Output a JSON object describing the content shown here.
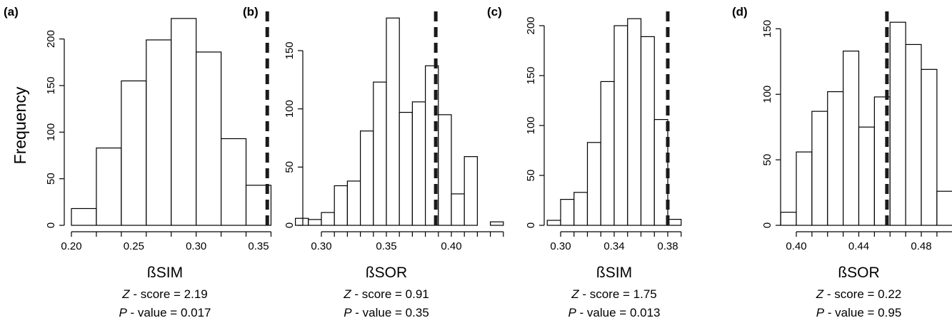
{
  "ylabel": "Frequency",
  "chart_data": [
    {
      "type": "bar",
      "panel_label": "(a)",
      "xlabel": "ßSIM",
      "ylabel": "Frequency",
      "xlim": [
        0.2,
        0.36
      ],
      "ylim": [
        0,
        225
      ],
      "x_ticks": [
        0.2,
        0.25,
        0.3,
        0.35
      ],
      "x_tick_labels": [
        "0.20",
        "0.25",
        "0.30",
        "0.35"
      ],
      "y_ticks": [
        0,
        50,
        100,
        150,
        200
      ],
      "y_tick_labels": [
        "0",
        "50",
        "100",
        "150",
        "200"
      ],
      "bin_width": 0.02,
      "bin_starts": [
        0.2,
        0.22,
        0.24,
        0.26,
        0.28,
        0.3,
        0.32,
        0.34
      ],
      "values": [
        18,
        83,
        155,
        199,
        222,
        186,
        93,
        43
      ],
      "observed_value": 0.357,
      "observed_line_style": "dashed",
      "z_label": "Z",
      "z_rest": " - score = 2.19",
      "p_label": "P",
      "p_rest": " - value = 0.017"
    },
    {
      "type": "bar",
      "panel_label": "(b)",
      "xlabel": "ßSOR",
      "ylabel": "",
      "xlim": [
        0.28,
        0.44
      ],
      "ylim": [
        0,
        180
      ],
      "x_ticks": [
        0.3,
        0.35,
        0.4
      ],
      "x_tick_labels": [
        "0.30",
        "0.35",
        "0.40"
      ],
      "y_ticks": [
        0,
        50,
        100,
        150
      ],
      "y_tick_labels": [
        "0",
        "50",
        "100",
        "150"
      ],
      "bin_width": 0.01,
      "bin_starts": [
        0.28,
        0.29,
        0.3,
        0.31,
        0.32,
        0.33,
        0.34,
        0.35,
        0.36,
        0.37,
        0.38,
        0.39,
        0.4,
        0.41,
        0.42,
        0.43
      ],
      "values": [
        6,
        5,
        11,
        34,
        38,
        81,
        123,
        178,
        97,
        106,
        137,
        95,
        27,
        59,
        0,
        3
      ],
      "observed_value": 0.388,
      "observed_line_style": "dashed",
      "z_label": "Z",
      "z_rest": " - score = 0.91",
      "p_label": "P",
      "p_rest": " - value = 0.35"
    },
    {
      "type": "bar",
      "panel_label": "(c)",
      "xlabel": "ßSIM",
      "ylabel": "",
      "xlim": [
        0.29,
        0.39
      ],
      "ylim": [
        0,
        210
      ],
      "x_ticks": [
        0.3,
        0.34,
        0.38
      ],
      "x_tick_labels": [
        "0.30",
        "0.34",
        "0.38"
      ],
      "y_ticks": [
        0,
        50,
        100,
        150,
        200
      ],
      "y_tick_labels": [
        "0",
        "50",
        "100",
        "150",
        "200"
      ],
      "bin_width": 0.01,
      "bin_starts": [
        0.29,
        0.3,
        0.31,
        0.32,
        0.33,
        0.34,
        0.35,
        0.36,
        0.37,
        0.38
      ],
      "values": [
        5,
        26,
        33,
        83,
        144,
        200,
        207,
        189,
        106,
        6
      ],
      "observed_value": 0.38,
      "observed_line_style": "dashed",
      "z_label": "Z",
      "z_rest": " - score = 1.75",
      "p_label": "P",
      "p_rest": " - value = 0.013"
    },
    {
      "type": "bar",
      "panel_label": "(d)",
      "xlabel": "ßSOR",
      "ylabel": "",
      "xlim": [
        0.39,
        0.5
      ],
      "ylim": [
        0,
        160
      ],
      "x_ticks": [
        0.4,
        0.44,
        0.48
      ],
      "x_tick_labels": [
        "0.40",
        "0.44",
        "0.48"
      ],
      "y_ticks": [
        0,
        50,
        100,
        150
      ],
      "y_tick_labels": [
        "0",
        "50",
        "100",
        "150"
      ],
      "bin_width": 0.01,
      "bin_starts": [
        0.39,
        0.4,
        0.41,
        0.42,
        0.43,
        0.44,
        0.45,
        0.46,
        0.47,
        0.48,
        0.49
      ],
      "values": [
        10,
        56,
        87,
        102,
        133,
        75,
        98,
        155,
        138,
        119,
        26
      ],
      "observed_value": 0.458,
      "observed_line_style": "dashed",
      "z_label": "Z",
      "z_rest": " - score = 0.22",
      "p_label": "P",
      "p_rest": " - value = 0.95"
    }
  ]
}
